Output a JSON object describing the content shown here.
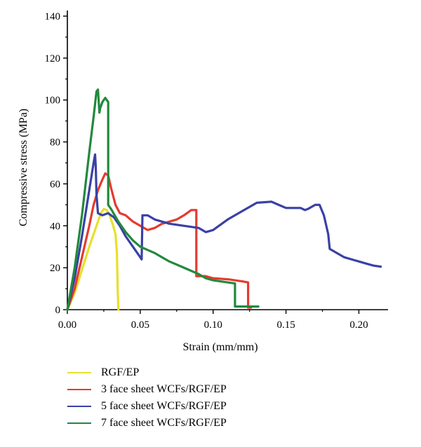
{
  "chart_data": {
    "type": "line",
    "xlabel": "Strain (mm/mm)",
    "ylabel": "Compressive stress (MPa)",
    "xlim": [
      0,
      0.22
    ],
    "ylim": [
      0,
      140
    ],
    "x_ticks": [
      "0.00",
      "0.05",
      "0.10",
      "0.15",
      "0.20"
    ],
    "y_ticks": [
      "0",
      "20",
      "40",
      "60",
      "80",
      "100",
      "120",
      "140"
    ],
    "x_tick_values": [
      0,
      0.05,
      0.1,
      0.15,
      0.2
    ],
    "y_tick_values": [
      0,
      20,
      40,
      60,
      80,
      100,
      120,
      140
    ],
    "grid": false,
    "legend_position": "bottom",
    "series": [
      {
        "name": "RGF/EP",
        "color": "#e8e02a",
        "points": [
          [
            0,
            0
          ],
          [
            0.005,
            8
          ],
          [
            0.01,
            19
          ],
          [
            0.015,
            30
          ],
          [
            0.02,
            40
          ],
          [
            0.023,
            46
          ],
          [
            0.025,
            48
          ],
          [
            0.027,
            47.5
          ],
          [
            0.029,
            45
          ],
          [
            0.031,
            41
          ],
          [
            0.033,
            36
          ],
          [
            0.034,
            27
          ],
          [
            0.0345,
            10
          ],
          [
            0.035,
            0
          ]
        ]
      },
      {
        "name": "3 face sheet WCFs/RGF/EP",
        "color": "#e53a2f",
        "points": [
          [
            0,
            0
          ],
          [
            0.005,
            10
          ],
          [
            0.01,
            25
          ],
          [
            0.015,
            40
          ],
          [
            0.018,
            50
          ],
          [
            0.021,
            57
          ],
          [
            0.024,
            62
          ],
          [
            0.026,
            65
          ],
          [
            0.028,
            64
          ],
          [
            0.03,
            58
          ],
          [
            0.033,
            50
          ],
          [
            0.036,
            46
          ],
          [
            0.04,
            45
          ],
          [
            0.045,
            42
          ],
          [
            0.05,
            40
          ],
          [
            0.055,
            38
          ],
          [
            0.06,
            39
          ],
          [
            0.065,
            41
          ],
          [
            0.07,
            42
          ],
          [
            0.075,
            43
          ],
          [
            0.08,
            45
          ],
          [
            0.085,
            47.5
          ],
          [
            0.0885,
            47.5
          ],
          [
            0.0885,
            16
          ],
          [
            0.095,
            16
          ],
          [
            0.1,
            15
          ],
          [
            0.11,
            14.5
          ],
          [
            0.12,
            13.5
          ],
          [
            0.124,
            13
          ],
          [
            0.124,
            1
          ],
          [
            0.126,
            1
          ]
        ]
      },
      {
        "name": "5 face sheet WCFs/RGF/EP",
        "color": "#3a41a5",
        "points": [
          [
            0,
            0
          ],
          [
            0.005,
            15
          ],
          [
            0.01,
            35
          ],
          [
            0.015,
            57
          ],
          [
            0.018,
            70
          ],
          [
            0.019,
            74
          ],
          [
            0.0195,
            68
          ],
          [
            0.02,
            55
          ],
          [
            0.021,
            46
          ],
          [
            0.024,
            45
          ],
          [
            0.028,
            46
          ],
          [
            0.032,
            44
          ],
          [
            0.036,
            40
          ],
          [
            0.04,
            35
          ],
          [
            0.045,
            30
          ],
          [
            0.05,
            25
          ],
          [
            0.051,
            24
          ],
          [
            0.0515,
            45
          ],
          [
            0.055,
            45
          ],
          [
            0.06,
            43
          ],
          [
            0.065,
            42
          ],
          [
            0.07,
            41
          ],
          [
            0.08,
            40
          ],
          [
            0.09,
            39
          ],
          [
            0.095,
            37
          ],
          [
            0.1,
            38
          ],
          [
            0.11,
            43
          ],
          [
            0.12,
            47
          ],
          [
            0.13,
            51
          ],
          [
            0.14,
            51.5
          ],
          [
            0.145,
            50
          ],
          [
            0.15,
            48.5
          ],
          [
            0.16,
            48.5
          ],
          [
            0.163,
            47.5
          ],
          [
            0.165,
            48
          ],
          [
            0.17,
            50
          ],
          [
            0.173,
            50
          ],
          [
            0.176,
            45
          ],
          [
            0.179,
            36
          ],
          [
            0.18,
            29
          ],
          [
            0.185,
            27
          ],
          [
            0.19,
            25
          ],
          [
            0.2,
            23
          ],
          [
            0.205,
            22
          ],
          [
            0.21,
            21
          ],
          [
            0.215,
            20.5
          ]
        ]
      },
      {
        "name": "7 face sheet WCFs/RGF/EP",
        "color": "#22893c",
        "points": [
          [
            0,
            0
          ],
          [
            0.005,
            20
          ],
          [
            0.01,
            45
          ],
          [
            0.015,
            75
          ],
          [
            0.018,
            92
          ],
          [
            0.02,
            104
          ],
          [
            0.021,
            105
          ],
          [
            0.022,
            94
          ],
          [
            0.0225,
            96
          ],
          [
            0.024,
            99
          ],
          [
            0.026,
            101
          ],
          [
            0.027,
            100
          ],
          [
            0.028,
            99
          ],
          [
            0.028,
            50
          ],
          [
            0.03,
            48
          ],
          [
            0.035,
            42
          ],
          [
            0.04,
            37
          ],
          [
            0.045,
            33
          ],
          [
            0.05,
            30
          ],
          [
            0.06,
            27
          ],
          [
            0.07,
            23
          ],
          [
            0.08,
            20
          ],
          [
            0.09,
            17
          ],
          [
            0.095,
            15
          ],
          [
            0.1,
            14
          ],
          [
            0.11,
            13
          ],
          [
            0.115,
            12.5
          ],
          [
            0.115,
            1.5
          ],
          [
            0.125,
            1.5
          ],
          [
            0.131,
            1.5
          ]
        ]
      }
    ]
  }
}
